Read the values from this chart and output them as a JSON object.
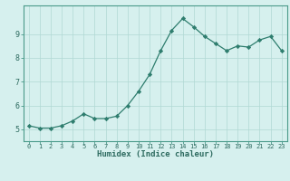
{
  "x": [
    0,
    1,
    2,
    3,
    4,
    5,
    6,
    7,
    8,
    9,
    10,
    11,
    12,
    13,
    14,
    15,
    16,
    17,
    18,
    19,
    20,
    21,
    22,
    23
  ],
  "y": [
    5.15,
    5.05,
    5.05,
    5.15,
    5.35,
    5.65,
    5.45,
    5.45,
    5.55,
    6.0,
    6.6,
    7.3,
    8.3,
    9.15,
    9.65,
    9.3,
    8.9,
    8.6,
    8.3,
    8.5,
    8.45,
    8.75,
    8.9,
    8.3
  ],
  "xlabel": "Humidex (Indice chaleur)",
  "line_color": "#2e7d6e",
  "marker": "D",
  "marker_size": 2.2,
  "bg_color": "#d6f0ee",
  "grid_color": "#b0d8d4",
  "xlim": [
    -0.5,
    23.5
  ],
  "ylim": [
    4.5,
    10.2
  ],
  "yticks": [
    5,
    6,
    7,
    8,
    9
  ],
  "xticks": [
    0,
    1,
    2,
    3,
    4,
    5,
    6,
    7,
    8,
    9,
    10,
    11,
    12,
    13,
    14,
    15,
    16,
    17,
    18,
    19,
    20,
    21,
    22,
    23
  ],
  "x_fontsize": 5.0,
  "y_fontsize": 6.0,
  "xlabel_fontsize": 6.5
}
